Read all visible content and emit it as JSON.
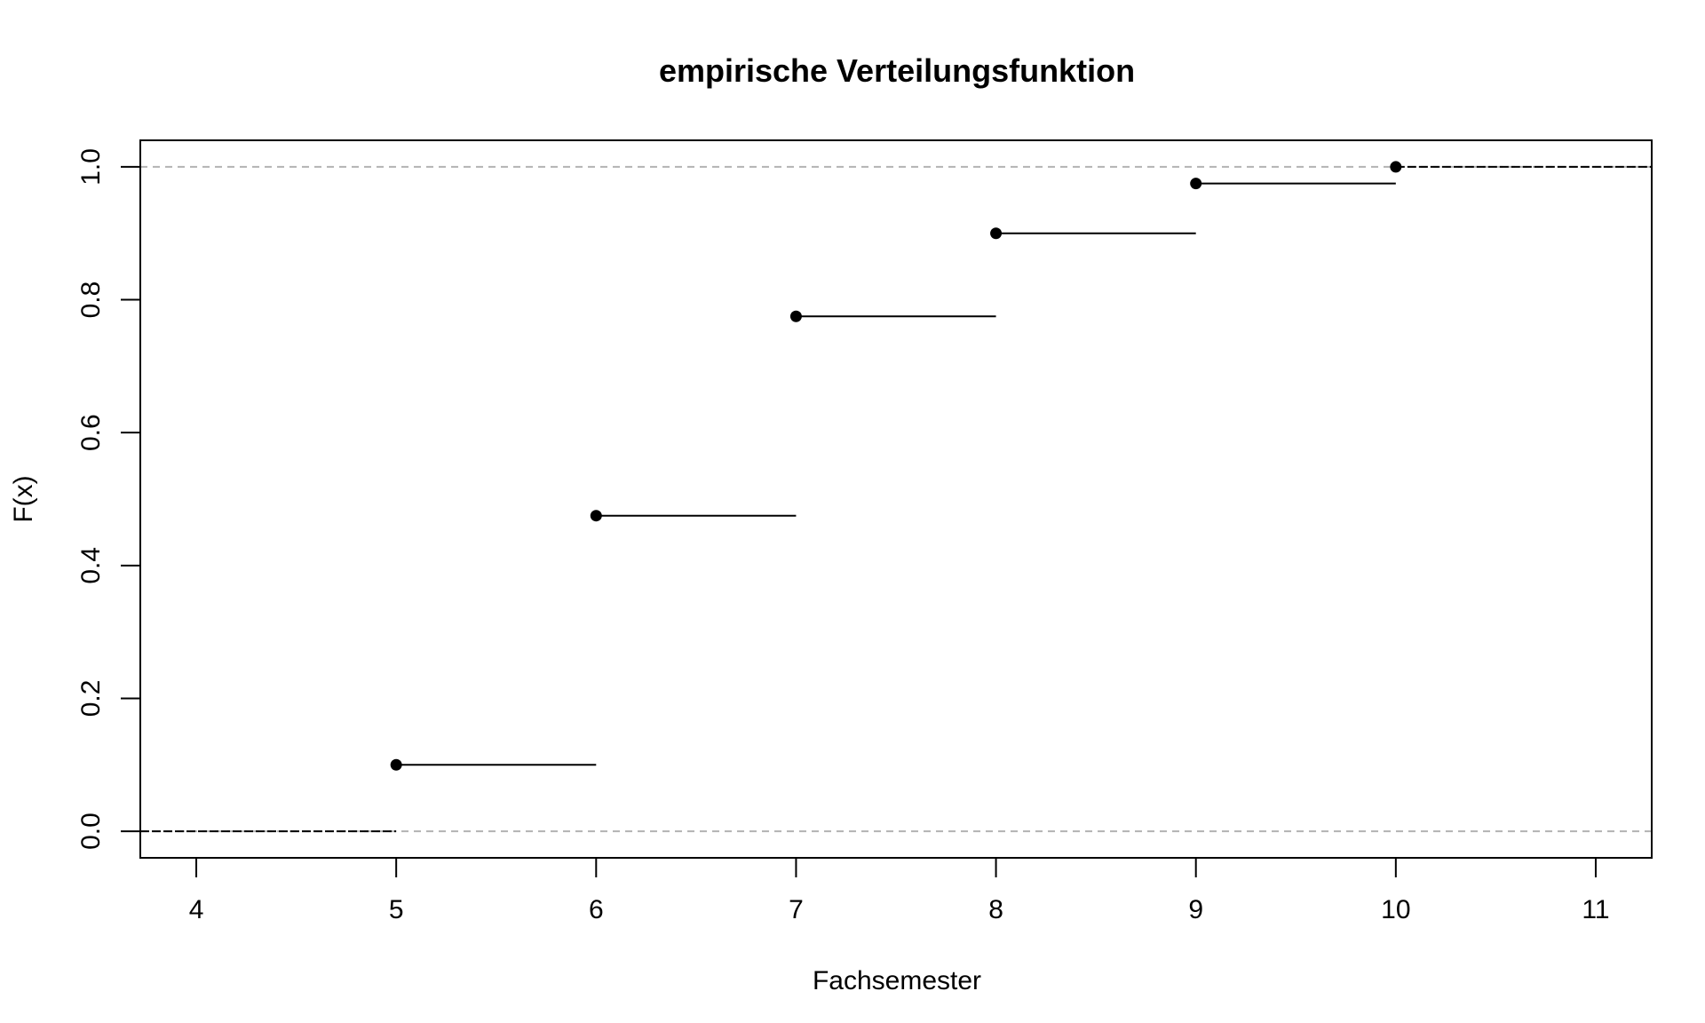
{
  "chart_data": {
    "type": "step",
    "title": "empirische Verteilungsfunktion",
    "xlabel": "Fachsemester",
    "ylabel": "F(x)",
    "xlim": [
      3.72,
      11.28
    ],
    "ylim": [
      -0.04,
      1.04
    ],
    "xticks": [
      "4",
      "5",
      "6",
      "7",
      "8",
      "9",
      "10",
      "11"
    ],
    "yticks": [
      "0.0",
      "0.2",
      "0.4",
      "0.6",
      "0.8",
      "1.0"
    ],
    "reference_lines_y": [
      0,
      1
    ],
    "points": [
      {
        "x": 5,
        "y": 0.1
      },
      {
        "x": 6,
        "y": 0.475
      },
      {
        "x": 7,
        "y": 0.775
      },
      {
        "x": 8,
        "y": 0.9
      },
      {
        "x": 9,
        "y": 0.975
      },
      {
        "x": 10,
        "y": 1.0
      }
    ],
    "colors": {
      "line": "#000000",
      "reference_line": "#b3b3b3"
    }
  }
}
